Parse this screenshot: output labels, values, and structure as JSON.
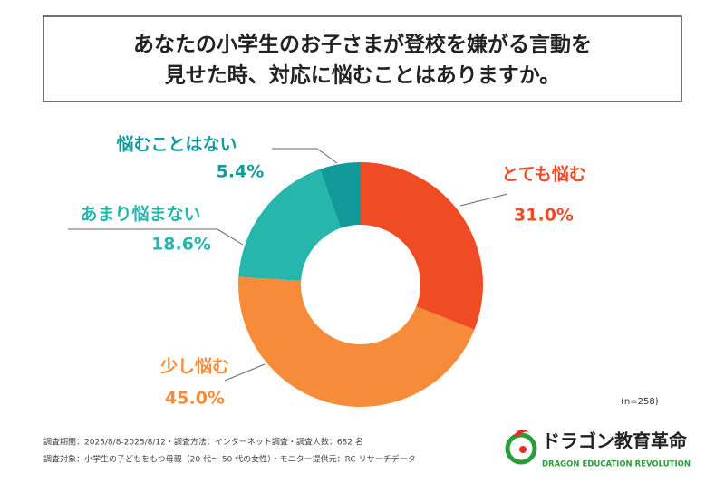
{
  "chart_data": {
    "type": "donut",
    "title": [
      "あなたの小学生のお子さまが登校を嫌がる言動を",
      "見せた時、対応に悩むことはありますか。"
    ],
    "categories": [
      "とても悩む",
      "少し悩む",
      "あまり悩まない",
      "悩むことはない"
    ],
    "values": [
      31.0,
      45.0,
      18.6,
      5.4
    ],
    "value_labels": [
      "31.0%",
      "45.0%",
      "18.6%",
      "5.4%"
    ],
    "colors": [
      "#ef4b24",
      "#f68b3a",
      "#27b6ac",
      "#129a9b"
    ],
    "note": "(n=258)",
    "footer": [
      "調査期間：2025/8/8-2025/8/12・調査方法：インターネット調査・調査人数：682 名",
      "調査対象：小学生の子どもをもつ母親（20 代～ 50 代の女性）・モニター提供元：RC リサーチデータ"
    ],
    "brand": {
      "name": "ドラゴン教育革命",
      "tagline": "DRAGON EDUCATION REVOLUTION"
    }
  }
}
